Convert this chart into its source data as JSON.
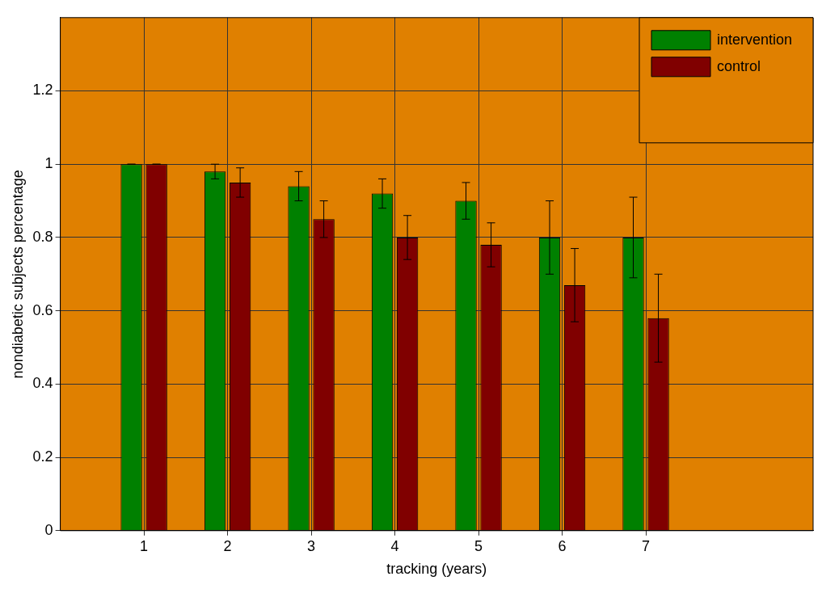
{
  "chart_data": {
    "type": "bar",
    "xlabel": "tracking (years)",
    "ylabel": "nondiabetic subjects percentage",
    "x": [
      1,
      2,
      3,
      4,
      5,
      6,
      7
    ],
    "xlim": [
      0,
      9
    ],
    "xticks": [
      1,
      2,
      3,
      4,
      5,
      6,
      7
    ],
    "ylim": [
      0,
      1.4
    ],
    "yticks": [
      0,
      0.2,
      0.4,
      0.6,
      0.8,
      1,
      1.2
    ],
    "series": [
      {
        "name": "intervention",
        "color": "#008000",
        "values": [
          1,
          0.98,
          0.94,
          0.92,
          0.9,
          0.8,
          0.8
        ],
        "errors": [
          0,
          0.02,
          0.04,
          0.04,
          0.05,
          0.1,
          0.11
        ]
      },
      {
        "name": "control",
        "color": "#800000",
        "values": [
          1,
          0.95,
          0.85,
          0.8,
          0.78,
          0.67,
          0.58
        ],
        "errors": [
          0,
          0.04,
          0.05,
          0.06,
          0.06,
          0.1,
          0.12
        ]
      }
    ],
    "grid": true,
    "legend": "top right"
  }
}
